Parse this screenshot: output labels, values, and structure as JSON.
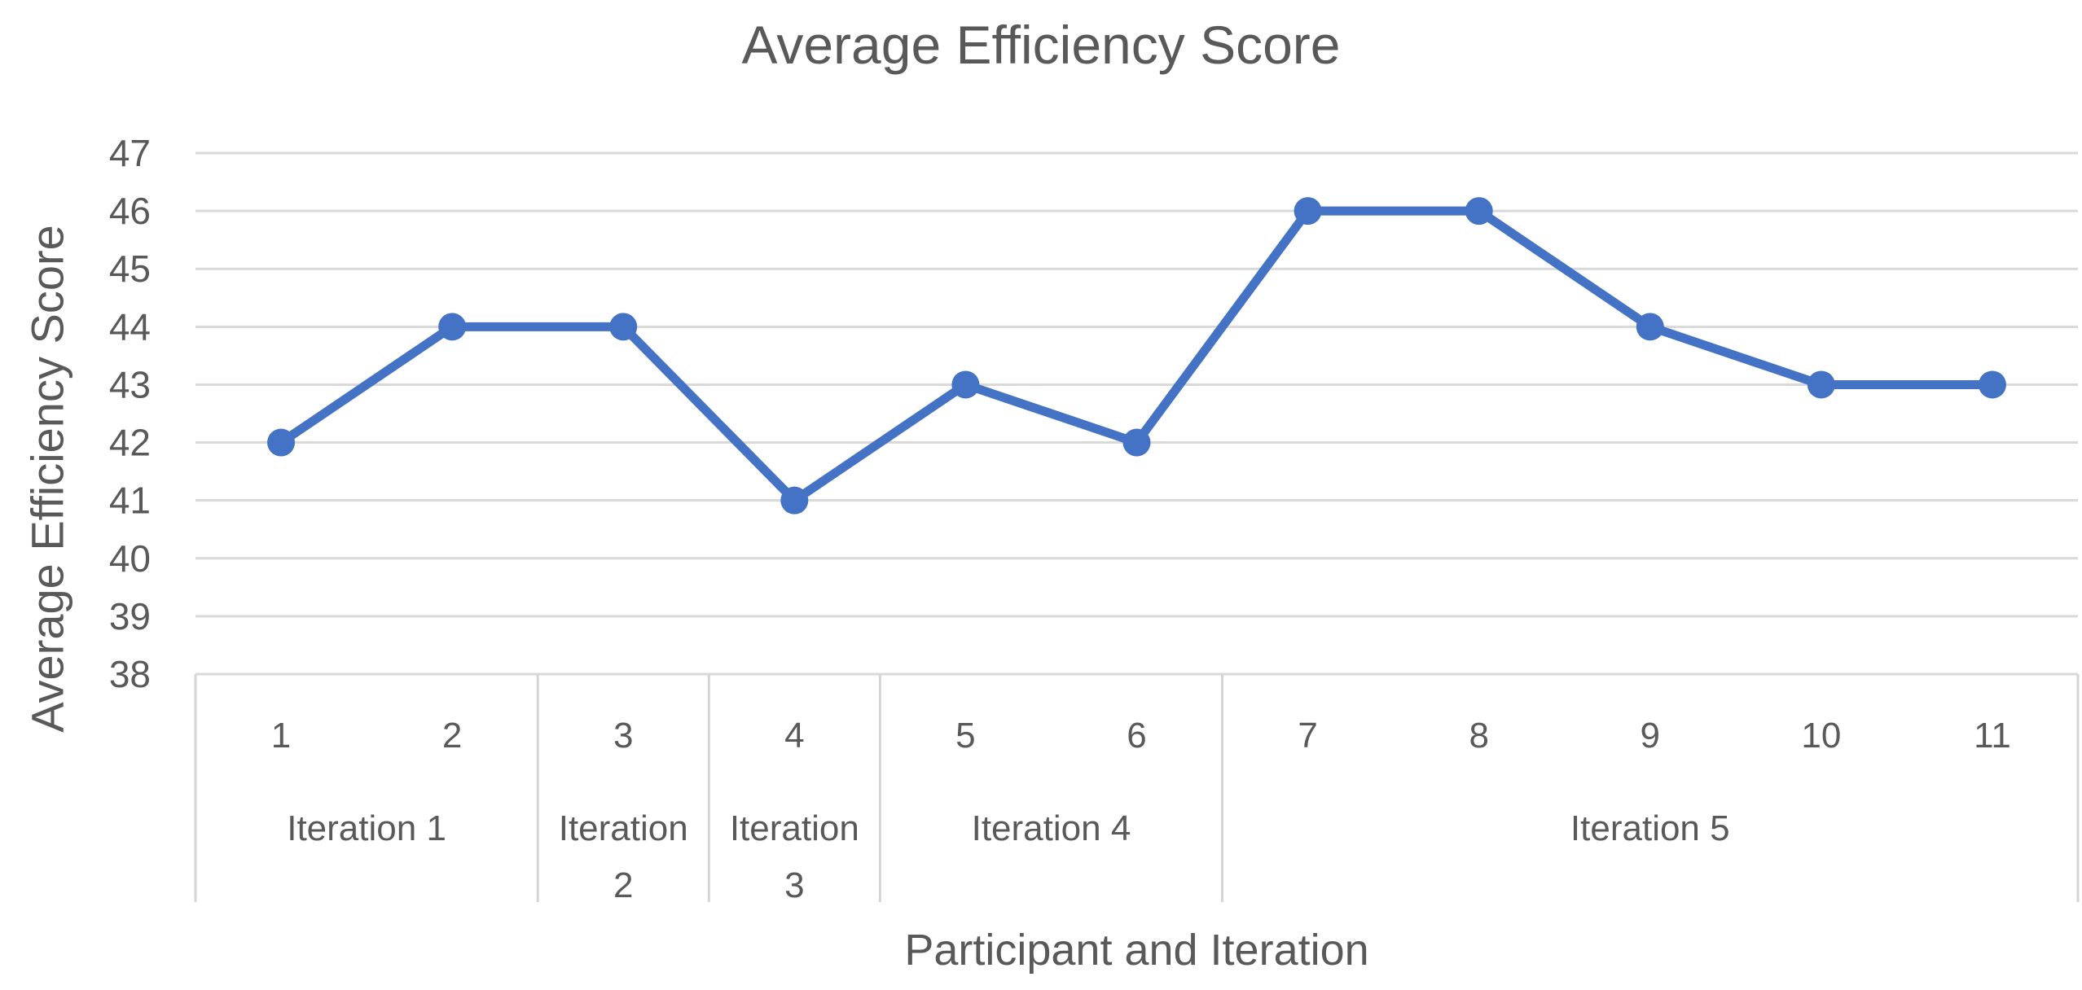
{
  "chart_data": {
    "type": "line",
    "title": "Average Efficiency Score",
    "xlabel": "Participant and Iteration",
    "ylabel": "Average Efficiency Score",
    "categories": [
      "1",
      "2",
      "3",
      "4",
      "5",
      "6",
      "7",
      "8",
      "9",
      "10",
      "11"
    ],
    "values": [
      42,
      44,
      44,
      41,
      43,
      42,
      46,
      46,
      44,
      43,
      43
    ],
    "groups": [
      {
        "label": "Iteration 1",
        "lines": [
          "Iteration 1"
        ],
        "span": 2
      },
      {
        "label": "Iteration 2",
        "lines": [
          "Iteration",
          "2"
        ],
        "span": 1
      },
      {
        "label": "Iteration 3",
        "lines": [
          "Iteration",
          "3"
        ],
        "span": 1
      },
      {
        "label": "Iteration 4",
        "lines": [
          "Iteration 4"
        ],
        "span": 2
      },
      {
        "label": "Iteration 5",
        "lines": [
          "Iteration 5"
        ],
        "span": 5
      }
    ],
    "ylim": [
      38,
      47
    ],
    "ytick_step": 1,
    "yticks": [
      "38",
      "39",
      "40",
      "41",
      "42",
      "43",
      "44",
      "45",
      "46",
      "47"
    ],
    "grid": true,
    "legend": false,
    "marker": "circle",
    "series_color": "#4472C4",
    "gridline_color": "#D9D9D9",
    "axis_border_color": "#D5D5D5",
    "text_color": "#595959"
  }
}
